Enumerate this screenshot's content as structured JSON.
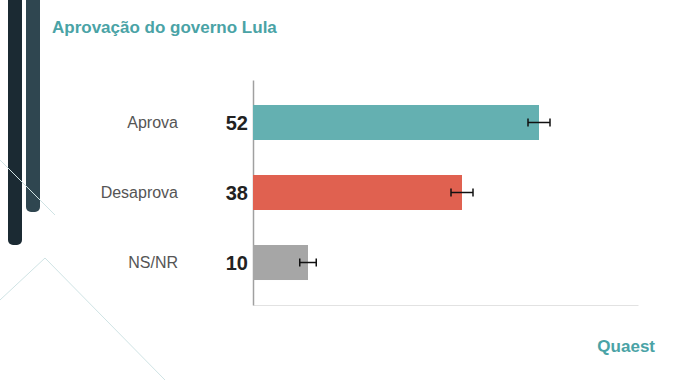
{
  "chart_data": {
    "type": "bar",
    "orientation": "horizontal",
    "title": "Aprovação do governo Lula",
    "categories": [
      "Aprova",
      "Desaprova",
      "NS/NR"
    ],
    "values": [
      52,
      38,
      10
    ],
    "errors": [
      2,
      2,
      1.5
    ],
    "colors": [
      "#64b0b1",
      "#e06150",
      "#a6a6a6"
    ],
    "xlim": [
      0,
      70
    ],
    "tick_labels": "y",
    "data_labels": true,
    "grid": false,
    "annotations": [
      "Quaest"
    ]
  }
}
